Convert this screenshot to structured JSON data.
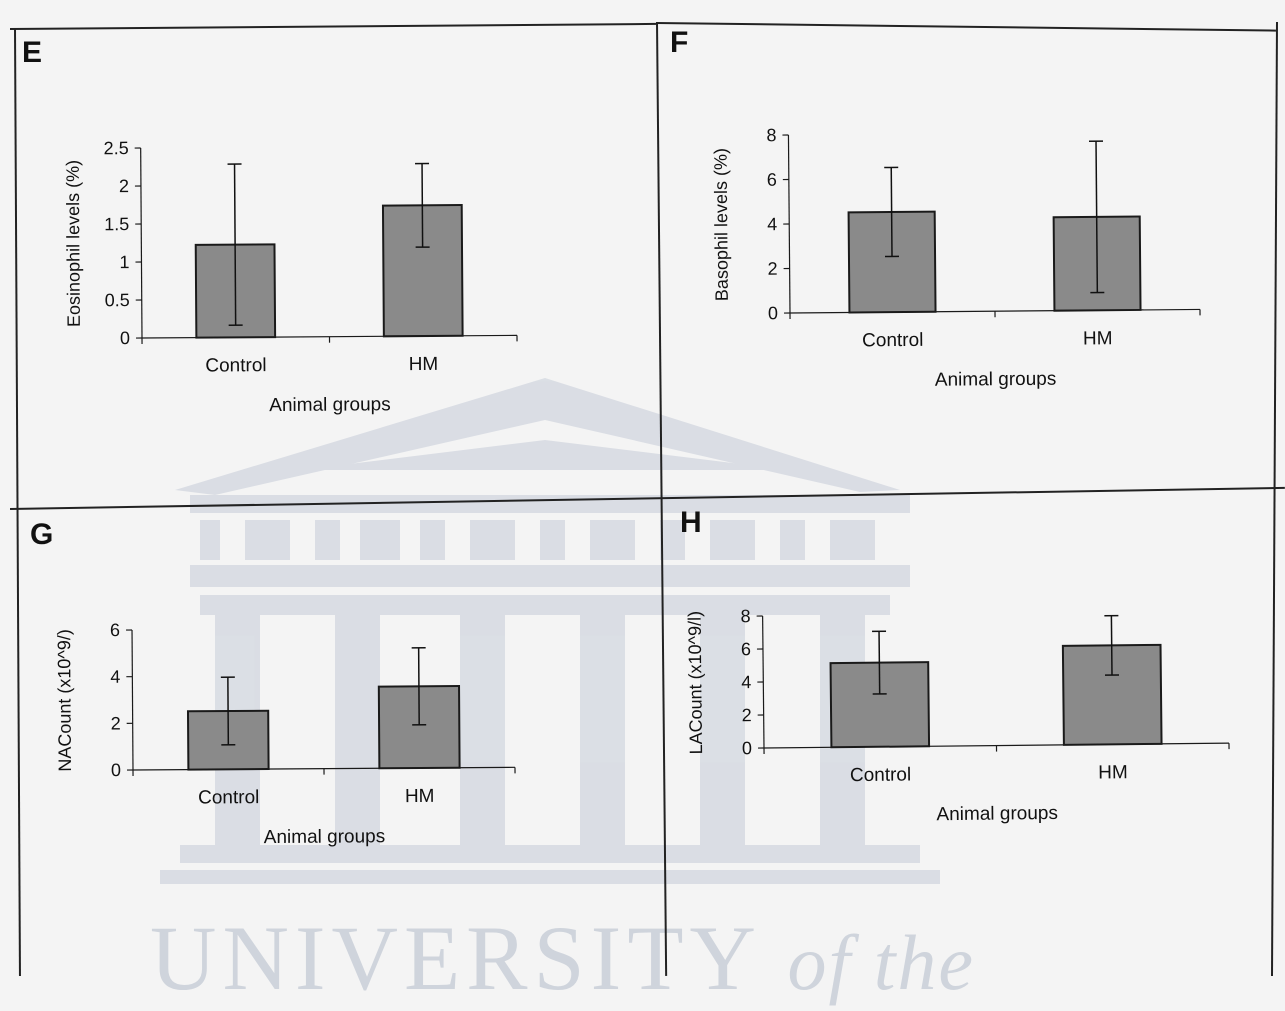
{
  "watermark": {
    "main": "UNIVERSITY",
    "suffix": "of the"
  },
  "colors": {
    "bar": "#8a8a8a",
    "bar_stroke": "#1a1a1a",
    "axis": "#1a1a1a",
    "watermark": "#cfd4dc"
  },
  "chart_data": [
    {
      "panel": "E",
      "type": "bar",
      "categories": [
        "Control",
        "HM"
      ],
      "values": [
        1.22,
        1.72
      ],
      "error": [
        1.06,
        0.55
      ],
      "xlabel": "Animal groups",
      "ylabel": "Eosinophil levels (%)",
      "ylim": [
        0,
        2.5
      ],
      "yticks": [
        0,
        0.5,
        1,
        1.5,
        2,
        2.5
      ],
      "ytick_labels": [
        "0",
        "0.5",
        "1",
        "1.5",
        "2",
        "2.5"
      ],
      "grid": false,
      "legend": "none"
    },
    {
      "panel": "F",
      "type": "bar",
      "categories": [
        "Control",
        "HM"
      ],
      "values": [
        4.5,
        4.2
      ],
      "error": [
        2.0,
        3.4
      ],
      "xlabel": "Animal groups",
      "ylabel": "Basophil levels (%)",
      "ylim": [
        0,
        8
      ],
      "yticks": [
        0,
        2,
        4,
        6,
        8
      ],
      "ytick_labels": [
        "0",
        "2",
        "4",
        "6",
        "8"
      ],
      "grid": false,
      "legend": "none"
    },
    {
      "panel": "G",
      "type": "bar",
      "categories": [
        "Control",
        "HM"
      ],
      "values": [
        2.5,
        3.5
      ],
      "error": [
        1.45,
        1.65
      ],
      "xlabel": "Animal groups",
      "ylabel": "NACount (x10^9/)",
      "ylim": [
        0,
        6
      ],
      "yticks": [
        0,
        2,
        4,
        6
      ],
      "ytick_labels": [
        "0",
        "2",
        "4",
        "6"
      ],
      "grid": false,
      "legend": "none"
    },
    {
      "panel": "H",
      "type": "bar",
      "categories": [
        "Control",
        "HM"
      ],
      "values": [
        5.1,
        6.0
      ],
      "error": [
        1.9,
        1.8
      ],
      "xlabel": "Animal groups",
      "ylabel": "LACount (x10^9/l)",
      "ylim": [
        0,
        8
      ],
      "yticks": [
        0,
        2,
        4,
        6,
        8
      ],
      "ytick_labels": [
        "0",
        "2",
        "4",
        "6",
        "8"
      ],
      "grid": false,
      "legend": "none"
    }
  ]
}
